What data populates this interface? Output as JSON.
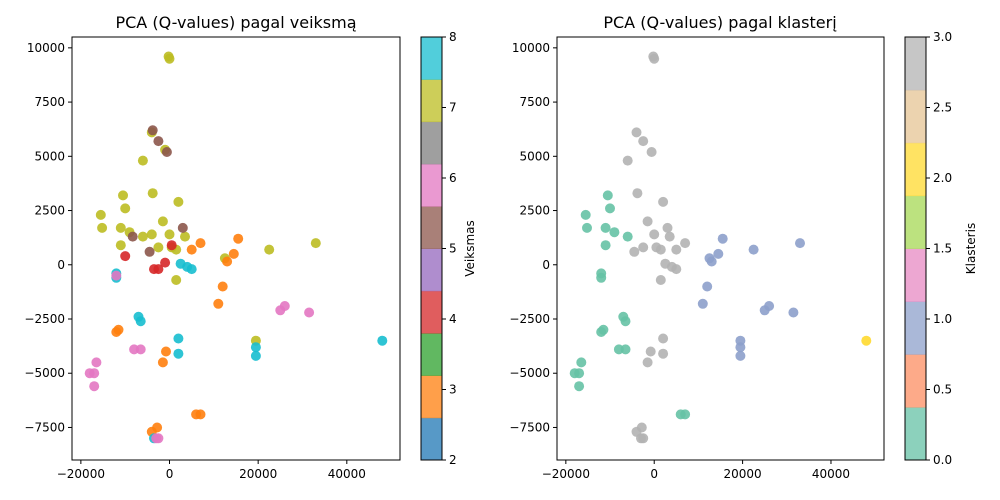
{
  "chart_data": [
    {
      "type": "scatter",
      "title": "PCA (Q-values) pagal veiksmą",
      "xlabel": "",
      "ylabel": "",
      "xlim": [
        -22000,
        52000
      ],
      "ylim": [
        -9000,
        10500
      ],
      "xticks": [
        "−20000",
        "0",
        "20000",
        "40000"
      ],
      "yticks": [
        "−7500",
        "−5000",
        "−2500",
        "0",
        "2500",
        "5000",
        "7500",
        "10000"
      ],
      "colorbar": {
        "label": "Veiksmas",
        "range": [
          2,
          8
        ],
        "ticks": [
          "2",
          "3",
          "4",
          "5",
          "6",
          "7",
          "8"
        ],
        "colors": [
          "#1f77b4",
          "#ff7f0e",
          "#2ca02c",
          "#d62728",
          "#9467bd",
          "#8c564b",
          "#e377c2",
          "#7f7f7f",
          "#bcbd22",
          "#17becf"
        ]
      },
      "series": [
        {
          "color": "#bcbd22",
          "points": [
            [
              2,
              9500
            ],
            [
              -200,
              9600
            ],
            [
              -4000,
              6100
            ],
            [
              -6000,
              4800
            ],
            [
              -3800,
              3300
            ],
            [
              -10500,
              3200
            ],
            [
              -10000,
              2600
            ],
            [
              -15500,
              2300
            ],
            [
              -15200,
              1700
            ],
            [
              -11000,
              1700
            ],
            [
              -9000,
              1500
            ],
            [
              -11000,
              900
            ],
            [
              -6000,
              1300
            ],
            [
              -4000,
              1400
            ],
            [
              -2500,
              800
            ],
            [
              0,
              1400
            ],
            [
              500,
              800
            ],
            [
              1500,
              700
            ],
            [
              3500,
              1300
            ],
            [
              2000,
              2900
            ],
            [
              -1500,
              2000
            ],
            [
              -1000,
              5300
            ],
            [
              12500,
              300
            ],
            [
              22500,
              700
            ],
            [
              33000,
              1000
            ],
            [
              1500,
              -700
            ],
            [
              19500,
              -3500
            ]
          ]
        },
        {
          "color": "#8c564b",
          "points": [
            [
              -3800,
              6200
            ],
            [
              -2500,
              5700
            ],
            [
              -600,
              5200
            ],
            [
              3000,
              1700
            ],
            [
              -4500,
              600
            ],
            [
              -8300,
              1300
            ]
          ]
        },
        {
          "color": "#ff7f0e",
          "points": [
            [
              15500,
              1200
            ],
            [
              14500,
              500
            ],
            [
              13000,
              150
            ],
            [
              7000,
              1000
            ],
            [
              5000,
              700
            ],
            [
              12000,
              -1000
            ],
            [
              11000,
              -1800
            ],
            [
              -12000,
              -3100
            ],
            [
              -11500,
              -3000
            ],
            [
              -800,
              -4000
            ],
            [
              -1500,
              -4500
            ],
            [
              7000,
              -6900
            ],
            [
              6000,
              -6900
            ],
            [
              -2800,
              -7500
            ],
            [
              -4000,
              -7700
            ]
          ]
        },
        {
          "color": "#d62728",
          "points": [
            [
              -3500,
              -200
            ],
            [
              -2500,
              -200
            ],
            [
              -1000,
              100
            ],
            [
              -10000,
              400
            ],
            [
              500,
              900
            ]
          ]
        },
        {
          "color": "#17becf",
          "points": [
            [
              2500,
              50
            ],
            [
              4000,
              -100
            ],
            [
              5000,
              -200
            ],
            [
              -12000,
              -400
            ],
            [
              -12000,
              -600
            ],
            [
              -7000,
              -2400
            ],
            [
              -6500,
              -2600
            ],
            [
              2000,
              -3400
            ],
            [
              2000,
              -4100
            ],
            [
              19500,
              -3800
            ],
            [
              19500,
              -4200
            ],
            [
              48000,
              -3500
            ],
            [
              -3500,
              -8000
            ]
          ]
        },
        {
          "color": "#e377c2",
          "points": [
            [
              -12000,
              -500
            ],
            [
              26000,
              -1900
            ],
            [
              25000,
              -2100
            ],
            [
              31500,
              -2200
            ],
            [
              -8000,
              -3900
            ],
            [
              -6500,
              -3900
            ],
            [
              -16500,
              -4500
            ],
            [
              -18000,
              -5000
            ],
            [
              -17000,
              -5000
            ],
            [
              -17000,
              -5600
            ],
            [
              -2500,
              -8000
            ],
            [
              -3000,
              -8000
            ]
          ]
        }
      ]
    },
    {
      "type": "scatter",
      "title": "PCA (Q-values) pagal klasterį",
      "xlabel": "",
      "ylabel": "",
      "xlim": [
        -22000,
        52000
      ],
      "ylim": [
        -9000,
        10500
      ],
      "xticks": [
        "−20000",
        "0",
        "20000",
        "40000"
      ],
      "yticks": [
        "−7500",
        "−5000",
        "−2500",
        "0",
        "2500",
        "5000",
        "7500",
        "10000"
      ],
      "colorbar": {
        "label": "Klasteris",
        "range": [
          0,
          3
        ],
        "ticks": [
          "0.0",
          "0.5",
          "1.0",
          "1.5",
          "2.0",
          "2.5",
          "3.0"
        ],
        "colors": [
          "#66c2a5",
          "#fc8d62",
          "#8da0cb",
          "#e78ac3",
          "#a6d854",
          "#ffd92f",
          "#e5c494",
          "#b3b3b3"
        ]
      },
      "series": [
        {
          "color": "#66c2a5",
          "points": [
            [
              -15500,
              2300
            ],
            [
              -15200,
              1700
            ],
            [
              -11000,
              1700
            ],
            [
              -10500,
              3200
            ],
            [
              -10000,
              2600
            ],
            [
              -11000,
              900
            ],
            [
              -9000,
              1500
            ],
            [
              -6000,
              1300
            ],
            [
              -12000,
              -400
            ],
            [
              -12000,
              -600
            ],
            [
              -7000,
              -2400
            ],
            [
              -6500,
              -2600
            ],
            [
              -12000,
              -3100
            ],
            [
              -11500,
              -3000
            ],
            [
              -8000,
              -3900
            ],
            [
              -6500,
              -3900
            ],
            [
              -16500,
              -4500
            ],
            [
              -18000,
              -5000
            ],
            [
              -17000,
              -5000
            ],
            [
              -17000,
              -5600
            ],
            [
              7000,
              -6900
            ],
            [
              6000,
              -6900
            ]
          ]
        },
        {
          "color": "#8da0cb",
          "points": [
            [
              15500,
              1200
            ],
            [
              14500,
              500
            ],
            [
              12500,
              300
            ],
            [
              13000,
              150
            ],
            [
              22500,
              700
            ],
            [
              33000,
              1000
            ],
            [
              12000,
              -1000
            ],
            [
              11000,
              -1800
            ],
            [
              26000,
              -1900
            ],
            [
              25000,
              -2100
            ],
            [
              31500,
              -2200
            ],
            [
              19500,
              -3500
            ],
            [
              19500,
              -3800
            ],
            [
              19500,
              -4200
            ]
          ]
        },
        {
          "color": "#ffd92f",
          "points": [
            [
              48000,
              -3500
            ]
          ]
        },
        {
          "color": "#b3b3b3",
          "points": [
            [
              2,
              9500
            ],
            [
              -200,
              9600
            ],
            [
              -4000,
              6100
            ],
            [
              -2500,
              5700
            ],
            [
              -600,
              5200
            ],
            [
              -6000,
              4800
            ],
            [
              -3800,
              3300
            ],
            [
              2000,
              2900
            ],
            [
              -1500,
              2000
            ],
            [
              3000,
              1700
            ],
            [
              0,
              1400
            ],
            [
              3500,
              1300
            ],
            [
              7000,
              1000
            ],
            [
              5000,
              700
            ],
            [
              500,
              800
            ],
            [
              1500,
              700
            ],
            [
              -2500,
              800
            ],
            [
              -4500,
              600
            ],
            [
              2500,
              50
            ],
            [
              4000,
              -100
            ],
            [
              5000,
              -200
            ],
            [
              1500,
              -700
            ],
            [
              2000,
              -3400
            ],
            [
              2000,
              -4100
            ],
            [
              -800,
              -4000
            ],
            [
              -1500,
              -4500
            ],
            [
              -2800,
              -7500
            ],
            [
              -4000,
              -7700
            ],
            [
              -2500,
              -8000
            ],
            [
              -3000,
              -8000
            ]
          ]
        }
      ]
    }
  ]
}
